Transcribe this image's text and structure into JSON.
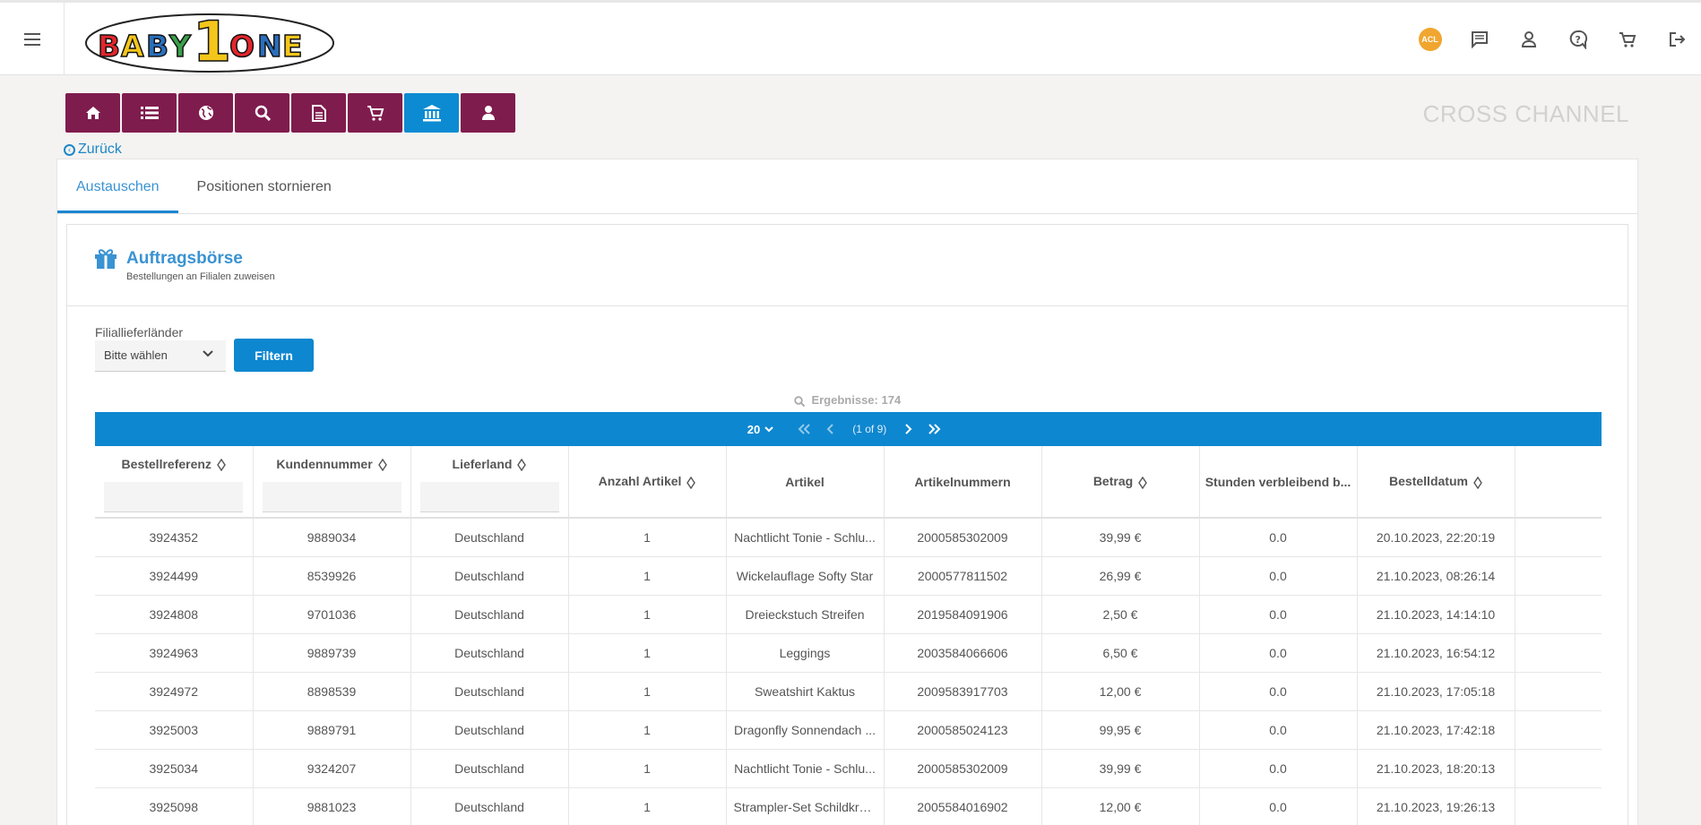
{
  "header": {
    "logo_text": "BABY1ONE",
    "acl_badge": "ACL"
  },
  "brand_label": "CROSS CHANNEL",
  "back_label": "Zurück",
  "tabs": [
    {
      "label": "Austauschen",
      "active": true
    },
    {
      "label": "Positionen stornieren",
      "active": false
    }
  ],
  "card": {
    "title": "Auftragsbörse",
    "subtitle": "Bestellungen an Filialen zuweisen"
  },
  "filter": {
    "label": "Filiallieferländer",
    "select_value": "Bitte wählen",
    "button_label": "Filtern"
  },
  "results_label": "Ergebnisse: 174",
  "pager": {
    "per_page": "20",
    "info": "(1 of 9)"
  },
  "columns": [
    "Bestellreferenz",
    "Kundennummer",
    "Lieferland",
    "Anzahl Artikel",
    "Artikel",
    "Artikelnummern",
    "Betrag",
    "Stunden verbleibend b...",
    "Bestelldatum"
  ],
  "rows": [
    [
      "3924352",
      "9889034",
      "Deutschland",
      "1",
      "Nachtlicht Tonie - Schlu...",
      "2000585302009",
      "39,99 €",
      "0.0",
      "20.10.2023, 22:20:19"
    ],
    [
      "3924499",
      "8539926",
      "Deutschland",
      "1",
      "Wickelauflage Softy Star",
      "2000577811502",
      "26,99 €",
      "0.0",
      "21.10.2023, 08:26:14"
    ],
    [
      "3924808",
      "9701036",
      "Deutschland",
      "1",
      "Dreieckstuch Streifen",
      "2019584091906",
      "2,50 €",
      "0.0",
      "21.10.2023, 14:14:10"
    ],
    [
      "3924963",
      "9889739",
      "Deutschland",
      "1",
      "Leggings",
      "2003584066606",
      "6,50 €",
      "0.0",
      "21.10.2023, 16:54:12"
    ],
    [
      "3924972",
      "8898539",
      "Deutschland",
      "1",
      "Sweatshirt Kaktus",
      "2009583917703",
      "12,00 €",
      "0.0",
      "21.10.2023, 17:05:18"
    ],
    [
      "3925003",
      "9889791",
      "Deutschland",
      "1",
      "Dragonfly Sonnendach ...",
      "2000585024123",
      "99,95 €",
      "0.0",
      "21.10.2023, 17:42:18"
    ],
    [
      "3925034",
      "9324207",
      "Deutschland",
      "1",
      "Nachtlicht Tonie - Schlu...",
      "2000585302009",
      "39,99 €",
      "0.0",
      "21.10.2023, 18:20:13"
    ],
    [
      "3925098",
      "9881023",
      "Deutschland",
      "1",
      "Strampler-Set Schildkröte",
      "2005584016902",
      "12,00 €",
      "0.0",
      "21.10.2023, 19:26:13"
    ]
  ],
  "colors": {
    "nav_button": "#7f1c4e",
    "nav_button_active": "#0d8bd2",
    "accent": "#0d87d0",
    "title_blue": "#3a93d2"
  }
}
